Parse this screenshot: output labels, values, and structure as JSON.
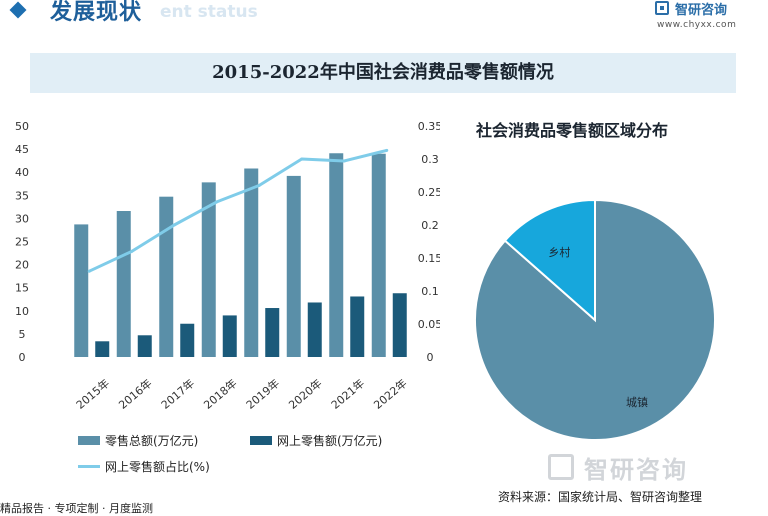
{
  "header": {
    "section_title": "发展现状",
    "section_ghost": "ent status",
    "logo_name": "智研咨询",
    "logo_url": "www.chyxx.com"
  },
  "banner_title": "2015-2022年中国社会消费品零售额情况",
  "pie_title": "社会消费品零售额区域分布",
  "legend": {
    "item1": "零售总额(万亿元)",
    "item2": "网上零售额(万亿元)",
    "item3": "网上零售额占比(%)"
  },
  "source": "资料来源：国家统计局、智研咨询整理",
  "footer": "精品报告 · 专项定制 · 月度监测",
  "watermark_logo": "智研咨询",
  "colors": {
    "total_bar": "#5a8fa8",
    "online_bar": "#1b5a7a",
    "ratio_line": "#7fcce9",
    "pie_urban": "#5a8fa8",
    "pie_rural": "#17a7dc"
  },
  "chart_data": [
    {
      "type": "bar",
      "title": "",
      "categories": [
        "2015年",
        "2016年",
        "2017年",
        "2018年",
        "2019年",
        "2020年",
        "2021年",
        "2022年"
      ],
      "series": [
        {
          "name": "零售总额(万亿元)",
          "values": [
            28.7,
            31.6,
            34.7,
            37.8,
            40.8,
            39.2,
            44.1,
            44.0
          ]
        },
        {
          "name": "网上零售额(万亿元)",
          "values": [
            3.4,
            4.7,
            7.2,
            9.0,
            10.6,
            11.8,
            13.1,
            13.8
          ]
        },
        {
          "name": "网上零售额占比(%)",
          "type": "line",
          "axis": "right",
          "values": [
            0.13,
            0.16,
            0.2,
            0.235,
            0.26,
            0.3,
            0.297,
            0.313
          ]
        }
      ],
      "y_left": {
        "min": 0,
        "max": 50,
        "ticks": [
          0,
          5,
          10,
          15,
          20,
          25,
          30,
          35,
          40,
          45,
          50
        ]
      },
      "y_right": {
        "min": 0,
        "max": 0.35,
        "ticks": [
          "0",
          "0.05",
          "0.1",
          "0.15",
          "0.2",
          "0.25",
          "0.3",
          "0.35"
        ]
      },
      "grid": false,
      "legend_position": "bottom"
    },
    {
      "type": "pie",
      "title": "社会消费品零售额区域分布",
      "slices": [
        {
          "label": "城镇",
          "value": 86.5
        },
        {
          "label": "乡村",
          "value": 13.5
        }
      ]
    }
  ]
}
